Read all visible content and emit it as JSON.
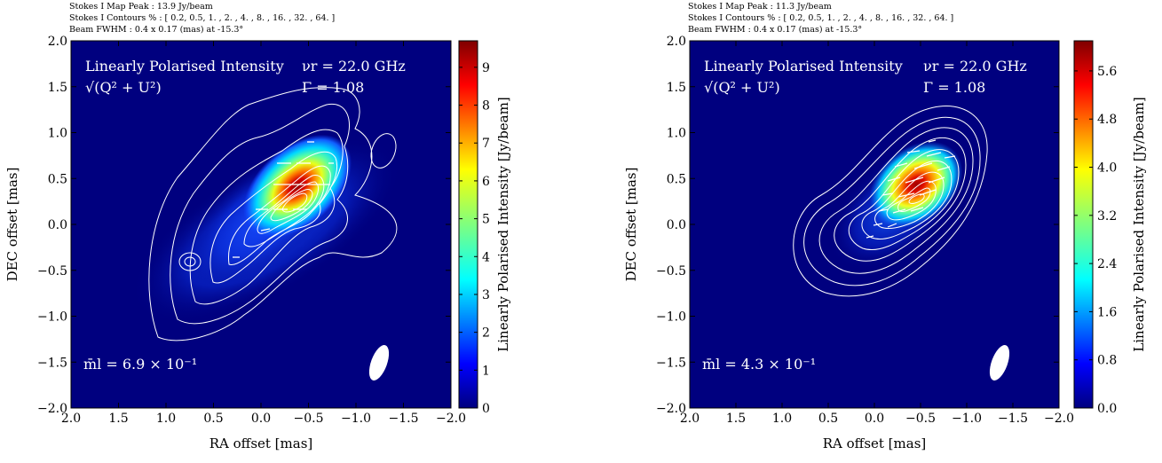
{
  "panels": [
    {
      "header": {
        "peak": "Stokes I Map Peak :  13.9 Jy/beam",
        "contours": "Stokes I Contours % :  [ 0.2, 0.5, 1. , 2. , 4. , 8. , 16. , 32. , 64. ]",
        "beam": "Beam FWHM :  0.4 x 0.17 (mas) at -15.3°"
      },
      "label_pol": "Linearly Polarised Intensity",
      "label_sqrt": "√(Q² + U²)",
      "label_freq": "νr = 22.0 GHz",
      "label_gamma": "Γ = 1.08",
      "label_mbar": "m̄l =  6.9 × 10⁻¹",
      "xlabel": "RA offset [mas]",
      "ylabel": "DEC offset [mas]",
      "cbar_label": "Linearly Polarised Intensity [Jy/beam]",
      "cbar_ticks": [
        "0",
        "1",
        "2",
        "3",
        "4",
        "5",
        "6",
        "7",
        "8",
        "9"
      ],
      "cbar_values": [
        0,
        1,
        2,
        3,
        4,
        5,
        6,
        7,
        8,
        9
      ],
      "cbar_max": 9.7
    },
    {
      "header": {
        "peak": "Stokes I Map Peak :  11.3 Jy/beam",
        "contours": "Stokes I Contours % :  [ 0.2, 0.5, 1. , 2. , 4. , 8. , 16. , 32. , 64. ]",
        "beam": "Beam FWHM :  0.4 x 0.17 (mas) at -15.3°"
      },
      "label_pol": "Linearly Polarised Intensity",
      "label_sqrt": "√(Q² + U²)",
      "label_freq": "νr = 22.0 GHz",
      "label_gamma": "Γ = 1.08",
      "label_mbar": "m̄l =  4.3 × 10⁻¹",
      "xlabel": "RA offset [mas]",
      "ylabel": "DEC offset [mas]",
      "cbar_label": "Linearly Polarised Intensity [Jy/beam]",
      "cbar_ticks": [
        "0.0",
        "0.8",
        "1.6",
        "2.4",
        "3.2",
        "4.0",
        "4.8",
        "5.6"
      ],
      "cbar_values": [
        0.0,
        0.8,
        1.6,
        2.4,
        3.2,
        4.0,
        4.8,
        5.6
      ],
      "cbar_max": 6.1
    }
  ],
  "chart_data": [
    {
      "type": "heatmap",
      "title": "",
      "xlabel": "RA offset [mas]",
      "ylabel": "DEC offset [mas]",
      "xlim": [
        2.0,
        -2.0
      ],
      "ylim": [
        -2.0,
        2.0
      ],
      "xticks": [
        "2.0",
        "1.5",
        "1.0",
        "0.5",
        "0.0",
        "−0.5",
        "−1.0",
        "−1.5",
        "−2.0"
      ],
      "xtick_values": [
        2.0,
        1.5,
        1.0,
        0.5,
        0.0,
        -0.5,
        -1.0,
        -1.5,
        -2.0
      ],
      "yticks": [
        "2.0",
        "1.5",
        "1.0",
        "0.5",
        "0.0",
        "−0.5",
        "−1.0",
        "−1.5",
        "−2.0"
      ],
      "ytick_values": [
        2.0,
        1.5,
        1.0,
        0.5,
        0.0,
        -0.5,
        -1.0,
        -1.5,
        -2.0
      ],
      "colorbar_range": [
        0,
        9.7
      ],
      "peak_position": [
        -0.55,
        0.42
      ],
      "contour_levels_percent": [
        0.2,
        0.5,
        1,
        2,
        4,
        8,
        16,
        32,
        64
      ],
      "beam": {
        "major_mas": 0.4,
        "minor_mas": 0.17,
        "pa_deg": -15.3,
        "position": [
          -1.4,
          -1.45
        ]
      },
      "mean_fractional_polarisation": "6.9 × 10⁻¹",
      "colormap": "jet"
    },
    {
      "type": "heatmap",
      "title": "",
      "xlabel": "RA offset [mas]",
      "ylabel": "DEC offset [mas]",
      "xlim": [
        2.0,
        -2.0
      ],
      "ylim": [
        -2.0,
        2.0
      ],
      "xticks": [
        "2.0",
        "1.5",
        "1.0",
        "0.5",
        "0.0",
        "−0.5",
        "−1.0",
        "−1.5",
        "−2.0"
      ],
      "xtick_values": [
        2.0,
        1.5,
        1.0,
        0.5,
        0.0,
        -0.5,
        -1.0,
        -1.5,
        -2.0
      ],
      "yticks": [
        "2.0",
        "1.5",
        "1.0",
        "0.5",
        "0.0",
        "−0.5",
        "−1.0",
        "−1.5",
        "−2.0"
      ],
      "ytick_values": [
        2.0,
        1.5,
        1.0,
        0.5,
        0.0,
        -0.5,
        -1.0,
        -1.5,
        -2.0
      ],
      "colorbar_range": [
        0.0,
        6.1
      ],
      "peak_position": [
        -0.65,
        0.48
      ],
      "contour_levels_percent": [
        0.2,
        0.5,
        1,
        2,
        4,
        8,
        16,
        32,
        64
      ],
      "beam": {
        "major_mas": 0.4,
        "minor_mas": 0.17,
        "pa_deg": -15.3,
        "position": [
          -1.4,
          -1.45
        ]
      },
      "mean_fractional_polarisation": "4.3 × 10⁻¹",
      "colormap": "jet"
    }
  ],
  "colors": {
    "background_field": "#00007f",
    "contour": "#ffffff"
  }
}
